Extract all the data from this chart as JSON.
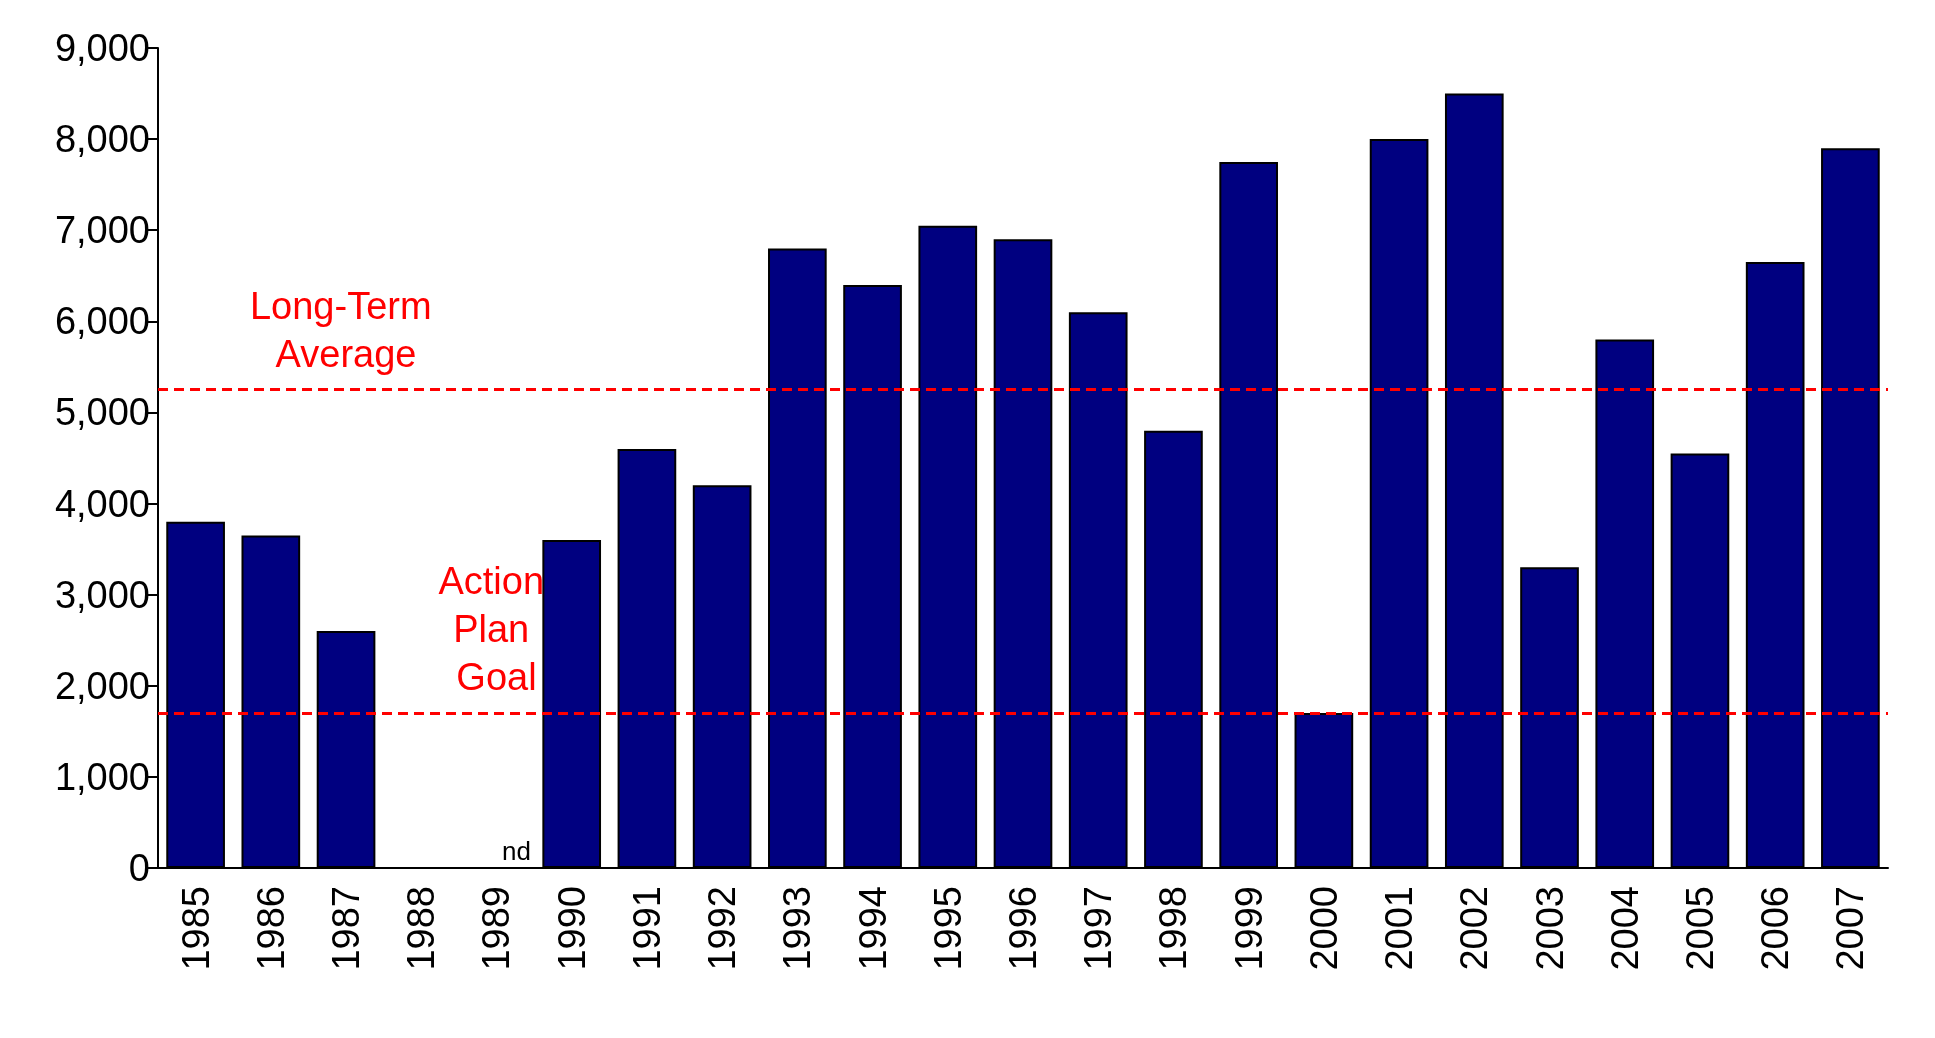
{
  "chart_data": {
    "type": "bar",
    "categories": [
      "1985",
      "1986",
      "1987",
      "1988",
      "1989",
      "1990",
      "1991",
      "1992",
      "1993",
      "1994",
      "1995",
      "1996",
      "1997",
      "1998",
      "1999",
      "2000",
      "2001",
      "2002",
      "2003",
      "2004",
      "2005",
      "2006",
      "2007"
    ],
    "values": [
      3800,
      3650,
      2600,
      null,
      null,
      3600,
      4600,
      4200,
      6800,
      6400,
      7050,
      6900,
      6100,
      4800,
      7750,
      1700,
      8000,
      8500,
      3300,
      5800,
      4550,
      6650,
      7900
    ],
    "color": "#000080",
    "ylim": [
      0,
      9000
    ],
    "yticks": [
      0,
      {
        "value": 1000,
        "label": "1,000"
      },
      {
        "value": 2000,
        "label": "2,000"
      },
      {
        "value": 3000,
        "label": "3,000"
      },
      {
        "value": 4000,
        "label": "4,000"
      },
      {
        "value": 5000,
        "label": "5,000"
      },
      {
        "value": 6000,
        "label": "6,000"
      },
      {
        "value": 7000,
        "label": "7,000"
      },
      {
        "value": 8000,
        "label": "8,000"
      },
      {
        "value": 9000,
        "label": "9,000"
      }
    ],
    "grid": false,
    "ref_lines": [
      {
        "axis": "y",
        "value": 5250,
        "label": "Long-Term Average",
        "color": "#ff0000",
        "line_style": "dashed"
      },
      {
        "axis": "y",
        "value": 1700,
        "label": "Action Plan Goal",
        "color": "#ff0000",
        "line_style": "dashed"
      }
    ],
    "annotations": [
      "nd"
    ]
  }
}
